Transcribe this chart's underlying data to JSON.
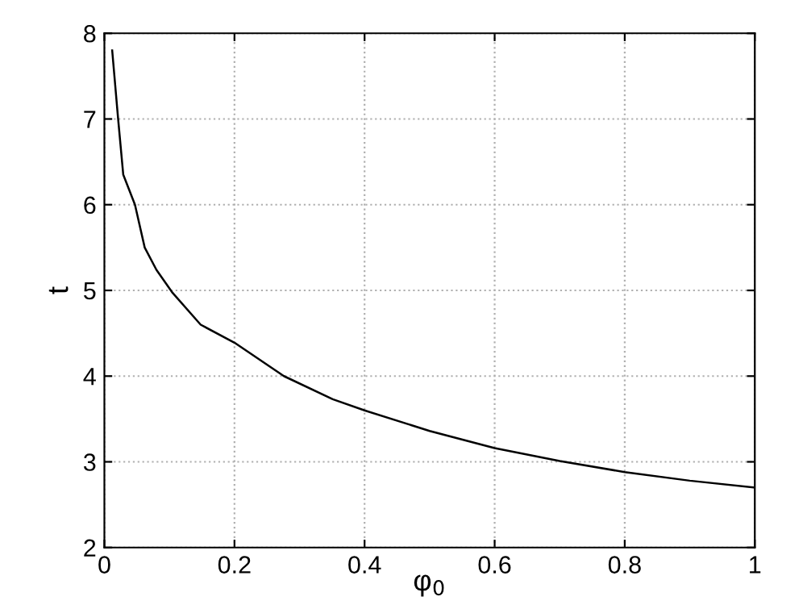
{
  "chart_data": {
    "type": "line",
    "xlabel": "φ$_{0}$",
    "ylabel": "t",
    "x": [
      0.012,
      0.021,
      0.029,
      0.047,
      0.062,
      0.08,
      0.105,
      0.148,
      0.2,
      0.276,
      0.351,
      0.4,
      0.5,
      0.6,
      0.7,
      0.8,
      0.9,
      1.0
    ],
    "series": [
      {
        "color": "#000000",
        "values": [
          7.8,
          7.01,
          6.35,
          6.0,
          5.5,
          5.24,
          4.97,
          4.6,
          4.39,
          4.0,
          3.73,
          3.6,
          3.36,
          3.16,
          3.01,
          2.88,
          2.78,
          2.7
        ]
      }
    ],
    "xlim": [
      0,
      1
    ],
    "ylim": [
      2,
      8
    ],
    "xticks": [
      0,
      0.2,
      0.4,
      0.6,
      0.8,
      1
    ],
    "yticks": [
      2,
      3,
      4,
      5,
      6,
      7,
      8
    ],
    "grid": true,
    "line_style": "solid",
    "marker": "none"
  }
}
